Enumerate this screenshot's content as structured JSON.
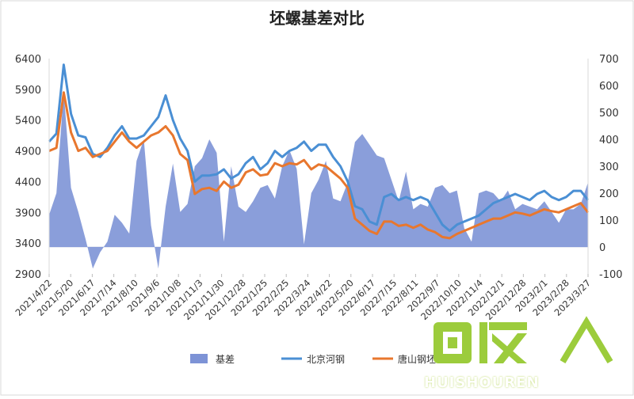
{
  "colors": {
    "basis": "#7d93d6",
    "beijing": "#4a8fd4",
    "tangshan": "#e8772e",
    "axis_text": "#333333",
    "grid": "#cccccc",
    "watermark": "#9ccc3c"
  },
  "watermark": {
    "text": "HUISHOUREN",
    "logo_chars": "回收"
  },
  "chart_data": {
    "type": "line",
    "title": "坯螺基差对比",
    "xlabel": "",
    "ylabel": "",
    "ylim": [
      2900,
      6400
    ],
    "y_ticks": [
      2900,
      3400,
      3900,
      4400,
      4900,
      5400,
      5900,
      6400
    ],
    "y2lim": [
      -100,
      700
    ],
    "y2_ticks": [
      -100,
      0,
      100,
      200,
      300,
      400,
      500,
      600,
      700
    ],
    "legend_position": "bottom",
    "x_tick_labels": [
      "2021/4/22",
      "2021/5/20",
      "2021/6/17",
      "2021/7/14",
      "2021/8/10",
      "2021/9/6",
      "2021/10/8",
      "2021/11/3",
      "2021/11/30",
      "2021/12/28",
      "2022/1/25",
      "2022/2/25",
      "2022/3/24",
      "2022/4/22",
      "2022/5/20",
      "2022/6/17",
      "2022/7/15",
      "2022/8/11",
      "2022/9/7",
      "2022/10/10",
      "2022/11/4",
      "2022/12/1",
      "2022/12/28",
      "2023/2/1",
      "2023/2/28",
      "2023/3/27"
    ],
    "series": [
      {
        "name": "基差",
        "kind": "area",
        "axis": "right",
        "values": [
          120,
          200,
          580,
          220,
          130,
          30,
          -80,
          -20,
          20,
          120,
          90,
          50,
          320,
          400,
          80,
          -80,
          150,
          310,
          130,
          160,
          300,
          330,
          400,
          350,
          20,
          300,
          150,
          130,
          170,
          220,
          230,
          180,
          300,
          360,
          290,
          10,
          200,
          250,
          320,
          180,
          170,
          240,
          390,
          420,
          380,
          340,
          330,
          250,
          170,
          280,
          140,
          160,
          150,
          220,
          230,
          200,
          210,
          70,
          20,
          200,
          210,
          200,
          170,
          210,
          140,
          160,
          150,
          140,
          170,
          130,
          90,
          140,
          140,
          160,
          240
        ]
      },
      {
        "name": "北京河钢",
        "kind": "line",
        "axis": "left",
        "values": [
          5050,
          5180,
          6300,
          5500,
          5150,
          5120,
          4850,
          4800,
          4950,
          5150,
          5300,
          5100,
          5100,
          5150,
          5300,
          5450,
          5800,
          5400,
          5100,
          4900,
          4400,
          4500,
          4500,
          4520,
          4600,
          4450,
          4520,
          4700,
          4800,
          4600,
          4700,
          4900,
          4800,
          4900,
          4950,
          5050,
          4900,
          5000,
          5000,
          4800,
          4650,
          4400,
          4000,
          3950,
          3750,
          3700,
          4150,
          4200,
          4100,
          4150,
          4100,
          4150,
          4100,
          3900,
          3700,
          3600,
          3700,
          3750,
          3800,
          3850,
          3950,
          4050,
          4100,
          4150,
          4200,
          4150,
          4100,
          4200,
          4250,
          4150,
          4100,
          4150,
          4250,
          4250,
          4100
        ]
      },
      {
        "name": "唐山钢坯",
        "kind": "line",
        "axis": "left",
        "values": [
          4900,
          4950,
          5850,
          5200,
          4900,
          4950,
          4800,
          4850,
          4900,
          5050,
          5200,
          5050,
          4950,
          5050,
          5150,
          5200,
          5300,
          5150,
          4850,
          4750,
          4200,
          4280,
          4300,
          4250,
          4400,
          4300,
          4350,
          4550,
          4600,
          4500,
          4520,
          4700,
          4650,
          4700,
          4680,
          4750,
          4600,
          4680,
          4650,
          4550,
          4450,
          4300,
          3800,
          3700,
          3600,
          3550,
          3750,
          3750,
          3680,
          3700,
          3650,
          3700,
          3620,
          3580,
          3500,
          3480,
          3550,
          3600,
          3650,
          3700,
          3750,
          3800,
          3800,
          3850,
          3900,
          3880,
          3850,
          3900,
          3950,
          3920,
          3900,
          3950,
          4000,
          4050,
          3900
        ]
      }
    ]
  }
}
